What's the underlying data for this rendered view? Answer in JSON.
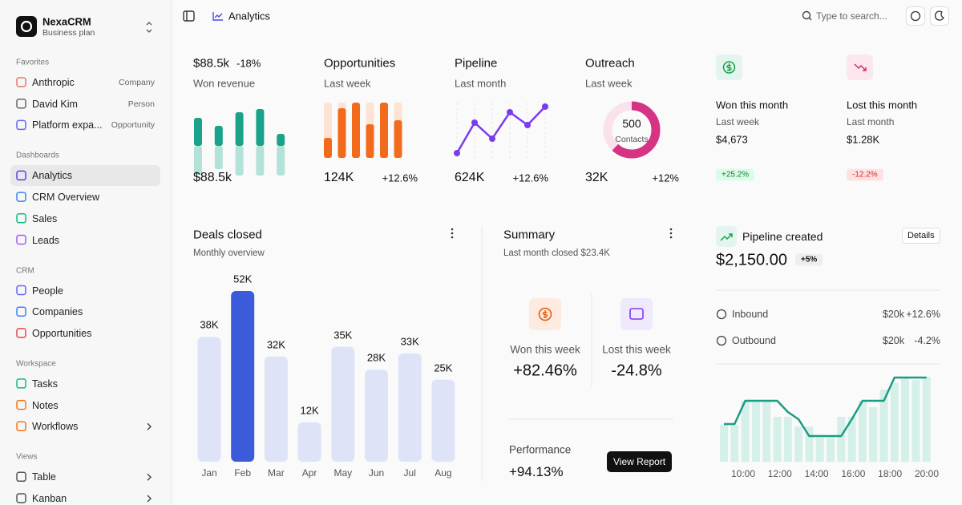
{
  "sidebar": {
    "brand": "NexaCRM",
    "plan": "Business plan",
    "sections": [
      {
        "title": "Favorites",
        "items": [
          {
            "label": "Anthropic",
            "tag": "Company",
            "color": "#e07a5f"
          },
          {
            "label": "David Kim",
            "tag": "Person",
            "color": "#666666"
          },
          {
            "label": "Platform expa...",
            "tag": "Opportunity",
            "color": "#6366f1"
          }
        ]
      },
      {
        "title": "Dashboards",
        "items": [
          {
            "label": "Analytics",
            "active": true,
            "color": "#4f46e5"
          },
          {
            "label": "CRM Overview",
            "color": "#3b82f6"
          },
          {
            "label": "Sales",
            "color": "#10b981"
          },
          {
            "label": "Leads",
            "color": "#a855f7"
          }
        ]
      },
      {
        "title": "CRM",
        "items": [
          {
            "label": "People",
            "color": "#6366f1"
          },
          {
            "label": "Companies",
            "color": "#3b82f6"
          },
          {
            "label": "Opportunities",
            "color": "#ef4444"
          }
        ]
      },
      {
        "title": "Workspace",
        "items": [
          {
            "label": "Tasks",
            "color": "#10b981"
          },
          {
            "label": "Notes",
            "color": "#f97316"
          },
          {
            "label": "Workflows",
            "color": "#f97316",
            "chevron": true
          }
        ]
      },
      {
        "title": "Views",
        "items": [
          {
            "label": "Table",
            "color": "#555555",
            "chevron": true
          },
          {
            "label": "Kanban",
            "color": "#555555",
            "chevron": true
          }
        ]
      }
    ]
  },
  "topbar": {
    "page": "Analytics",
    "search": "Type to search..."
  },
  "stats": [
    {
      "value": "$88.5k",
      "change": "-18%",
      "subtitle": "Won revenue",
      "chart": {
        "type": "split_bar",
        "color": "#1aa38a",
        "light_color": "#b3e2d9",
        "up": [
          35,
          25,
          42,
          46,
          15
        ],
        "down": [
          36,
          29,
          37,
          37,
          37
        ]
      }
    },
    {
      "title": "Opportunities",
      "subtitle": "Last week",
      "value": "124K",
      "change": "+12.6%",
      "chart": {
        "type": "bar",
        "color": "#f26b1d",
        "light_color": "#fde3d3",
        "values": [
          25,
          62,
          69,
          42,
          69,
          47
        ]
      }
    },
    {
      "title": "Pipeline",
      "subtitle": "Last month",
      "value": "624K",
      "change": "+12.6%",
      "chart": {
        "type": "line",
        "color": "#7c3aed",
        "values": [
          9,
          47,
          27,
          60,
          44,
          67
        ]
      }
    },
    {
      "title": "Outreach",
      "subtitle": "Last week",
      "value": "32K",
      "change": "+12%",
      "chart": {
        "type": "donut",
        "color": "#d63384",
        "light_color": "#fbe1ec",
        "center": "500",
        "center_label": "Contacts",
        "percent": 62
      }
    },
    {
      "title": "Won this month",
      "subtitle": "Last week",
      "value": "$4,673",
      "badge": "+25.2%",
      "trend": "up"
    },
    {
      "title": "Lost this month",
      "subtitle": "Last month",
      "value": "$1.28K",
      "badge": "-12.2%",
      "trend": "down"
    }
  ],
  "deals_closed": {
    "type": "bar",
    "title": "Deals closed",
    "subtitle": "Monthly overview",
    "categories": [
      "Jan",
      "Feb",
      "Mar",
      "Apr",
      "May",
      "Jun",
      "Jul",
      "Aug"
    ],
    "values": [
      38,
      52,
      32,
      12,
      35,
      28,
      33,
      25
    ],
    "value_labels": [
      "38K",
      "52K",
      "32K",
      "12K",
      "35K",
      "28K",
      "33K",
      "25K"
    ],
    "color": "#dfe3f8",
    "highlight_color": "#3b5bdb",
    "highlight": 1
  },
  "summary": {
    "title": "Summary",
    "subtitle": "Last month closed $23.4K",
    "won": {
      "label": "Won this week",
      "value": "+82.46%"
    },
    "lost": {
      "label": "Lost this week",
      "value": "-24.8%"
    },
    "performance": {
      "label": "Performance",
      "value": "+94.13%"
    },
    "button": "View Report"
  },
  "pipeline_created": {
    "title": "Pipeline created",
    "button": "Details",
    "value": "$2,150.00",
    "badge": "+5%",
    "rows": [
      {
        "label": "Inbound",
        "amount": "$20k",
        "change": "+12.6%"
      },
      {
        "label": "Outbound",
        "amount": "$20k",
        "change": "-4.2%"
      }
    ],
    "chart": {
      "type": "bar_line",
      "x": [
        "10:00",
        "12:00",
        "14:00",
        "16:00",
        "18:00",
        "20:00"
      ],
      "bar_color": "#d5efe9",
      "line_color": "#1a9c85",
      "bars": [
        46,
        46,
        76,
        76,
        76,
        56,
        56,
        44,
        44,
        30,
        30,
        56,
        56,
        76,
        68,
        90,
        98,
        106,
        102,
        106
      ],
      "line": [
        47,
        47,
        76,
        76,
        76,
        76,
        62,
        53,
        32,
        32,
        32,
        32,
        53,
        76,
        76,
        76,
        105,
        105,
        105,
        105
      ]
    }
  }
}
